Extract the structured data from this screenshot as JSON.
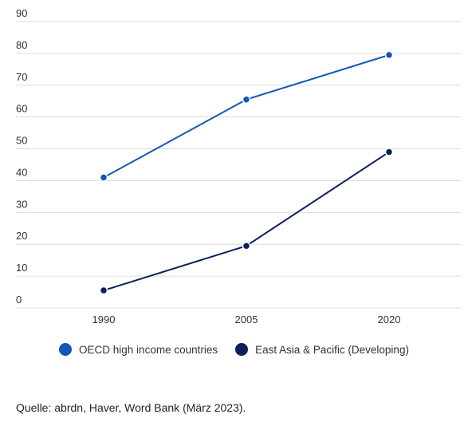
{
  "chart_data": {
    "type": "line",
    "x": [
      "1990",
      "2005",
      "2020"
    ],
    "series": [
      {
        "name": "OECD high income countries",
        "values": [
          41,
          65.5,
          79.5
        ],
        "color": "#1457b8"
      },
      {
        "name": "East Asia & Pacific (Developing)",
        "values": [
          5.5,
          19.5,
          49
        ],
        "color": "#0c1f5c"
      }
    ],
    "yticks": [
      "90",
      "80",
      "70",
      "60",
      "50",
      "40",
      "30",
      "20",
      "10",
      "0"
    ],
    "ylim": [
      0,
      90
    ],
    "grid": "horizontal",
    "legend_position": "bottom"
  },
  "source": "Quelle: abrdn, Haver, Word Bank (März 2023)."
}
